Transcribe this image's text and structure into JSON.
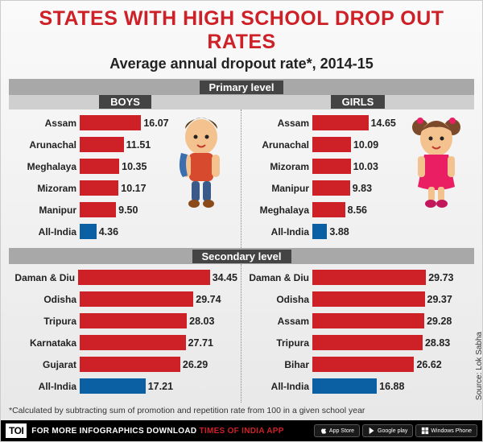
{
  "title": "STATES WITH HIGH SCHOOL DROP OUT RATES",
  "subtitle": "Average annual dropout rate*, 2014-15",
  "footnote": "*Calculated by subtracting sum of promotion and repetition rate from 100 in a given school year",
  "source": "Source: Lok Sabha",
  "sections": {
    "primary": {
      "label": "Primary level",
      "boys_label": "BOYS",
      "girls_label": "GIRLS",
      "bar_max": 40
    },
    "secondary": {
      "label": "Secondary level",
      "bar_max": 40
    }
  },
  "colors": {
    "bar_red": "#ce2027",
    "bar_blue": "#0b5fa3",
    "title_red": "#ce2027",
    "strip_bg": "#a8a8a8",
    "pill_bg": "#444444"
  },
  "primary_boys": [
    {
      "state": "Assam",
      "val": "16.07",
      "v": 16.07
    },
    {
      "state": "Arunachal",
      "val": "11.51",
      "v": 11.51
    },
    {
      "state": "Meghalaya",
      "val": "10.35",
      "v": 10.35
    },
    {
      "state": "Mizoram",
      "val": "10.17",
      "v": 10.17
    },
    {
      "state": "Manipur",
      "val": "9.50",
      "v": 9.5
    },
    {
      "state": "All-India",
      "val": "4.36",
      "v": 4.36,
      "blue": true
    }
  ],
  "primary_girls": [
    {
      "state": "Assam",
      "val": "14.65",
      "v": 14.65
    },
    {
      "state": "Arunachal",
      "val": "10.09",
      "v": 10.09
    },
    {
      "state": "Mizoram",
      "val": "10.03",
      "v": 10.03
    },
    {
      "state": "Manipur",
      "val": "9.83",
      "v": 9.83
    },
    {
      "state": "Meghalaya",
      "val": "8.56",
      "v": 8.56
    },
    {
      "state": "All-India",
      "val": "3.88",
      "v": 3.88,
      "blue": true
    }
  ],
  "secondary_boys": [
    {
      "state": "Daman & Diu",
      "val": "34.45",
      "v": 34.45
    },
    {
      "state": "Odisha",
      "val": "29.74",
      "v": 29.74
    },
    {
      "state": "Tripura",
      "val": "28.03",
      "v": 28.03
    },
    {
      "state": "Karnataka",
      "val": "27.71",
      "v": 27.71
    },
    {
      "state": "Gujarat",
      "val": "26.29",
      "v": 26.29
    },
    {
      "state": "All-India",
      "val": "17.21",
      "v": 17.21,
      "blue": true
    }
  ],
  "secondary_girls": [
    {
      "state": "Daman & Diu",
      "val": "29.73",
      "v": 29.73
    },
    {
      "state": "Odisha",
      "val": "29.37",
      "v": 29.37
    },
    {
      "state": "Assam",
      "val": "29.28",
      "v": 29.28
    },
    {
      "state": "Tripura",
      "val": "28.83",
      "v": 28.83
    },
    {
      "state": "Bihar",
      "val": "26.62",
      "v": 26.62
    },
    {
      "state": "All-India",
      "val": "16.88",
      "v": 16.88,
      "blue": true
    }
  ],
  "footer": {
    "toi": "TOI",
    "text_white": "FOR MORE  INFOGRAPHICS DOWNLOAD ",
    "text_red": "TIMES OF INDIA  APP",
    "stores": [
      "App Store",
      "Google play",
      "Windows Phone"
    ]
  }
}
